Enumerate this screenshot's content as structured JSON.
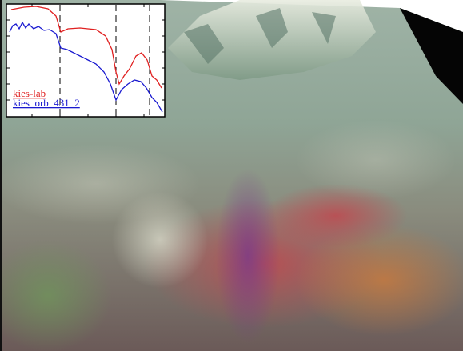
{
  "inset": {
    "legend": [
      {
        "name": "kies-lab",
        "color": "#e02020"
      },
      {
        "name": "kies_orb_431_2",
        "color": "#1a1ad0"
      }
    ]
  }
}
